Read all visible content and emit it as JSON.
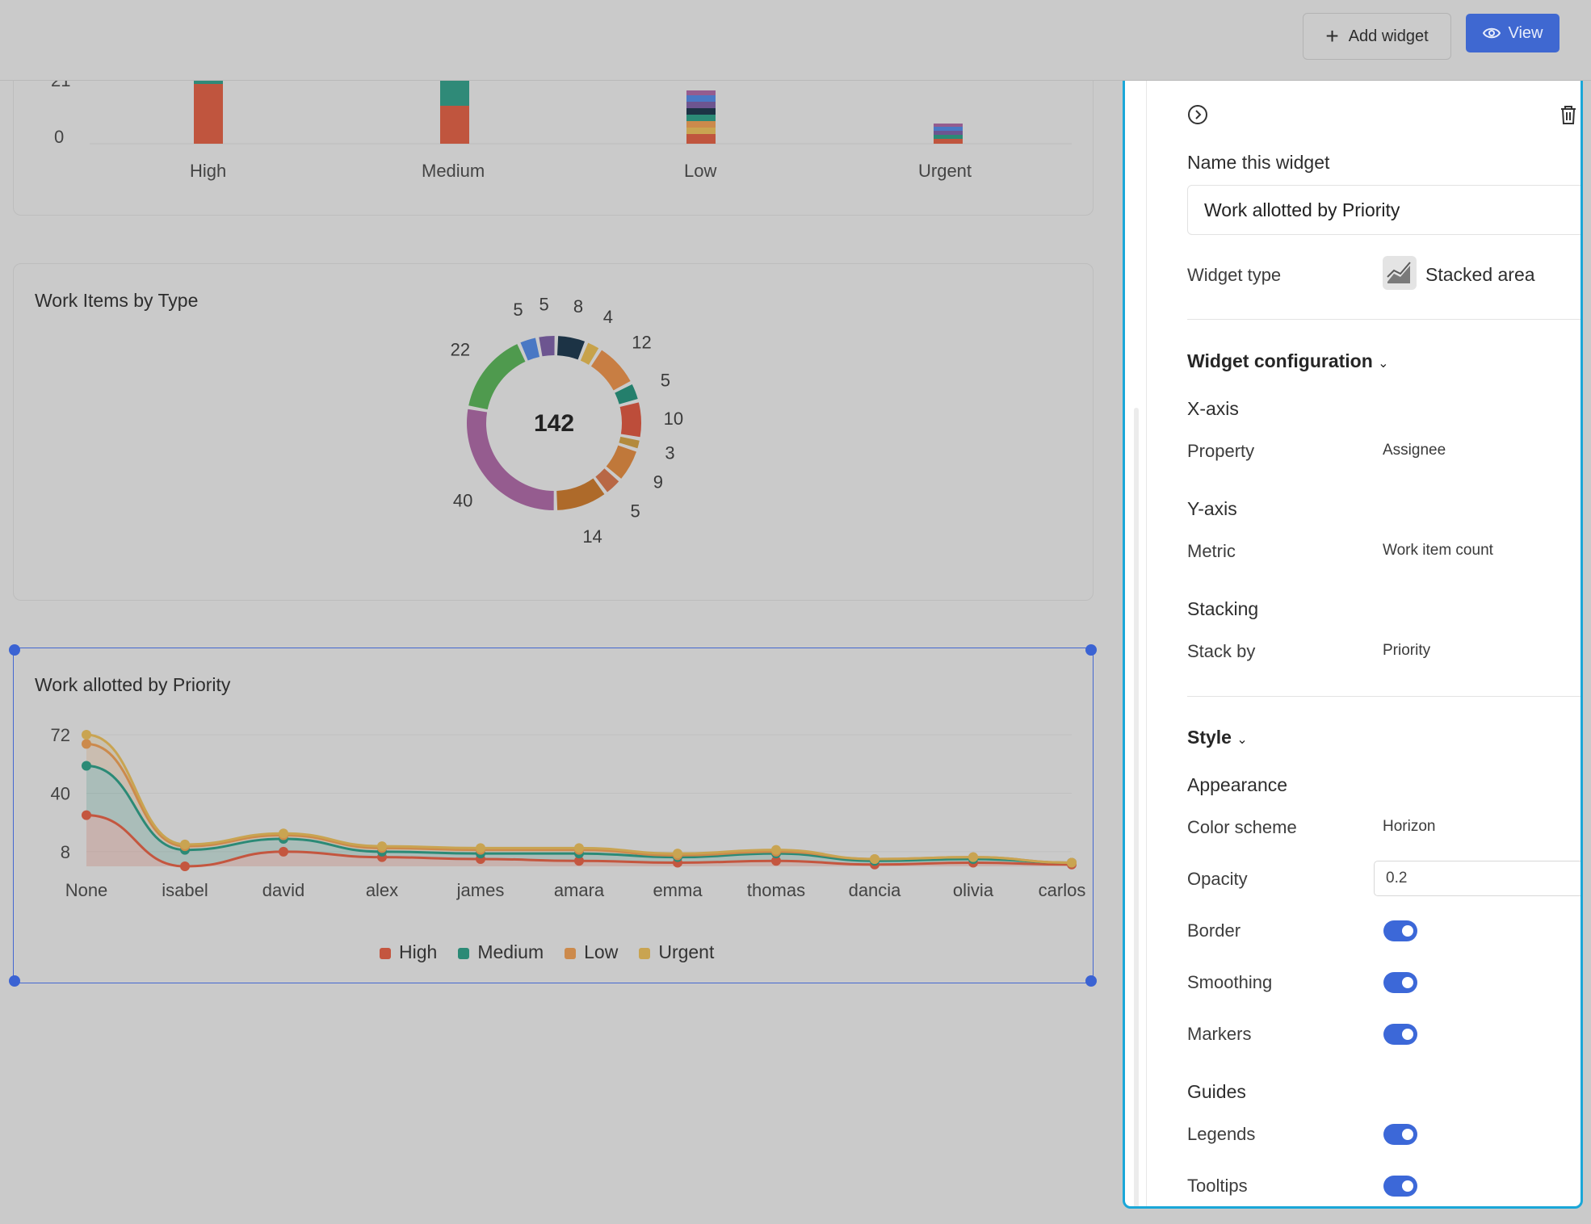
{
  "toolbar": {
    "add_widget_label": "Add widget",
    "view_label": "View"
  },
  "priority_bar_chart": {
    "chart_data": {
      "type": "bar",
      "categories": [
        "High",
        "Medium",
        "Low",
        "Urgent"
      ],
      "yticks": [
        "21",
        "0"
      ],
      "colors": {
        "high": "#c0553e",
        "medium": "#2f8a78"
      }
    }
  },
  "type_donut": {
    "title": "Work Items by Type",
    "total": "142",
    "chart_data": {
      "type": "pie",
      "values": [
        40,
        22,
        5,
        5,
        8,
        4,
        12,
        5,
        10,
        3,
        9,
        5,
        14
      ],
      "labels": [
        "40",
        "22",
        "5",
        "5",
        "8",
        "4",
        "12",
        "5",
        "10",
        "3",
        "9",
        "5",
        "14"
      ],
      "colors": [
        "#955c8f",
        "#4f9a4e",
        "#4a78c4",
        "#6d5590",
        "#1c3345",
        "#c7a24a",
        "#c87e43",
        "#247f6c",
        "#bd4d3a",
        "#b38a3c",
        "#c0783a",
        "#b86745",
        "#ae6a2a"
      ]
    }
  },
  "priority_area": {
    "title": "Work allotted by Priority",
    "chart_data": {
      "type": "area",
      "stacked": true,
      "categories": [
        "None",
        "isabel",
        "david",
        "alex",
        "james",
        "amara",
        "emma",
        "thomas",
        "dancia",
        "olivia",
        "carlos"
      ],
      "yticks": [
        72,
        40,
        8
      ],
      "ylim": [
        0,
        76
      ],
      "series": [
        {
          "name": "High",
          "color": "#c4563f",
          "values": [
            28,
            0,
            8,
            5,
            4,
            3,
            2,
            3,
            1,
            2,
            1
          ]
        },
        {
          "name": "Medium",
          "color": "#2b8a76",
          "values": [
            27,
            9,
            7,
            3,
            3,
            4,
            3,
            4,
            2,
            2,
            1
          ]
        },
        {
          "name": "Low",
          "color": "#cc8a4c",
          "values": [
            12,
            2,
            2,
            2,
            2,
            2,
            1,
            1,
            1,
            1,
            0
          ]
        },
        {
          "name": "Urgent",
          "color": "#c9a451",
          "values": [
            5,
            1,
            1,
            1,
            1,
            1,
            1,
            1,
            0,
            0,
            0
          ]
        }
      ]
    }
  },
  "panel": {
    "name_label": "Name this widget",
    "name_value": "Work allotted by Priority",
    "widget_type_label": "Widget type",
    "widget_type_value": "Stacked area",
    "config_heading": "Widget configuration",
    "xaxis_heading": "X-axis",
    "property_label": "Property",
    "property_value": "Assignee",
    "yaxis_heading": "Y-axis",
    "metric_label": "Metric",
    "metric_value": "Work item count",
    "stacking_heading": "Stacking",
    "stackby_label": "Stack by",
    "stackby_value": "Priority",
    "style_heading": "Style",
    "appearance_heading": "Appearance",
    "colorscheme_label": "Color scheme",
    "colorscheme_value": "Horizon",
    "opacity_label": "Opacity",
    "opacity_value": "0.2",
    "border_label": "Border",
    "smoothing_label": "Smoothing",
    "markers_label": "Markers",
    "guides_heading": "Guides",
    "legends_label": "Legends",
    "tooltips_label": "Tooltips"
  }
}
